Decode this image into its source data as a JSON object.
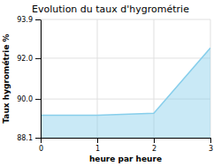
{
  "chart_data": {
    "type": "area",
    "title": "Evolution du taux d'hygrométrie",
    "x_label": "heure par heure",
    "y_label": "Taux hygrométrie %",
    "x": [
      0,
      1,
      2,
      3
    ],
    "values": [
      89.2,
      89.2,
      89.3,
      92.5
    ],
    "color": "#87ceeb",
    "xlim": [
      0,
      3
    ],
    "ylim": [
      88.1,
      93.9
    ],
    "xticks": [
      0,
      1,
      2,
      3
    ],
    "yticks": [
      88.1,
      {
        "value": 90.0,
        "label": "90.0"
      },
      {
        "value": 92.0,
        "label": "92.0"
      },
      93.9
    ],
    "grid": true
  }
}
